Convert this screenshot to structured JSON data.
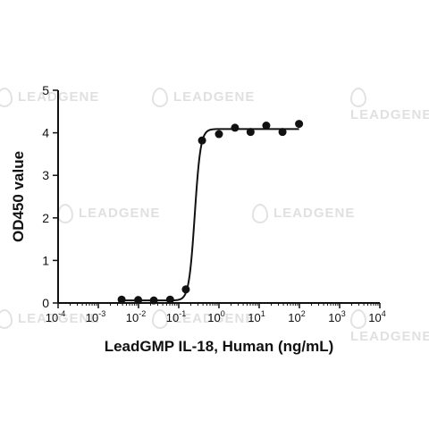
{
  "watermark": "LEADGENE",
  "chart_data": {
    "type": "scatter",
    "title": "",
    "xlabel": "LeadGMP IL-18, Human (ng/mL)",
    "ylabel": "OD450 value",
    "x_scale": "log",
    "xlim": [
      0.0001,
      10000
    ],
    "ylim": [
      0,
      5
    ],
    "x_ticks": [
      {
        "base": "10",
        "exp": "-4"
      },
      {
        "base": "10",
        "exp": "-3"
      },
      {
        "base": "10",
        "exp": "-2"
      },
      {
        "base": "10",
        "exp": "-1"
      },
      {
        "base": "10",
        "exp": "0"
      },
      {
        "base": "10",
        "exp": "1"
      },
      {
        "base": "10",
        "exp": "2"
      },
      {
        "base": "10",
        "exp": "3"
      },
      {
        "base": "10",
        "exp": "4"
      }
    ],
    "y_ticks": [
      "0",
      "1",
      "2",
      "3",
      "4",
      "5"
    ],
    "grid": false,
    "series": [
      {
        "points": [
          {
            "x": 0.0038,
            "y": 0.08
          },
          {
            "x": 0.0098,
            "y": 0.07
          },
          {
            "x": 0.024,
            "y": 0.06
          },
          {
            "x": 0.061,
            "y": 0.08
          },
          {
            "x": 0.15,
            "y": 0.32
          },
          {
            "x": 0.38,
            "y": 3.82
          },
          {
            "x": 1.0,
            "y": 3.97
          },
          {
            "x": 2.5,
            "y": 4.12
          },
          {
            "x": 6.1,
            "y": 4.02
          },
          {
            "x": 15,
            "y": 4.17
          },
          {
            "x": 38,
            "y": 4.02
          },
          {
            "x": 98,
            "y": 4.21
          }
        ],
        "color": "#111111"
      }
    ],
    "fit": {
      "model": "4PL",
      "bottom": 0.06,
      "top": 4.09,
      "ec50": 0.25,
      "hill": 6.0,
      "color": "#111111"
    }
  }
}
